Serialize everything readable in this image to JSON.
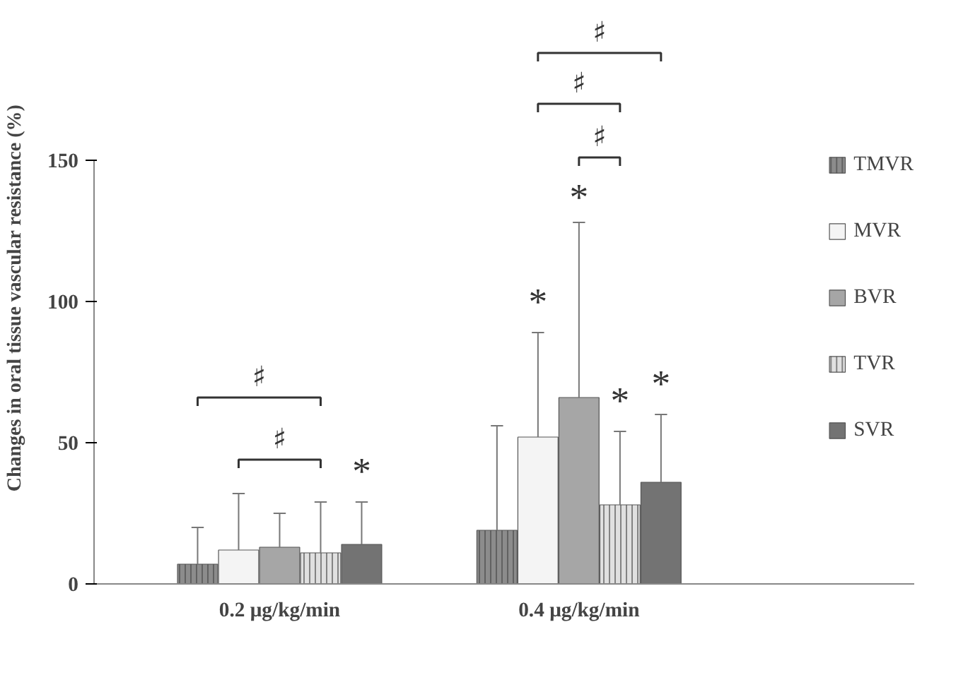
{
  "chart_data": {
    "type": "bar",
    "ylabel": "Changes in oral tissue vascular resistance (%)",
    "categories": [
      "0.2 μg/kg/min",
      "0.4 μg/kg/min"
    ],
    "series": [
      {
        "name": "TMVR",
        "color": "#8c8c8c",
        "values": [
          7,
          19
        ],
        "errors": [
          [
            7,
            20
          ],
          [
            19,
            56
          ]
        ]
      },
      {
        "name": "MVR",
        "color": "#f4f4f4",
        "values": [
          12,
          52
        ],
        "errors": [
          [
            12,
            32
          ],
          [
            52,
            89
          ]
        ]
      },
      {
        "name": "BVR",
        "color": "#a6a6a6",
        "values": [
          13,
          66
        ],
        "errors": [
          [
            13,
            25
          ],
          [
            66,
            128
          ]
        ]
      },
      {
        "name": "TVR",
        "color": "#e0e0e0",
        "values": [
          11,
          28
        ],
        "errors": [
          [
            11,
            29
          ],
          [
            28,
            54
          ]
        ]
      },
      {
        "name": "SVR",
        "color": "#737373",
        "values": [
          14,
          36
        ],
        "errors": [
          [
            14,
            29
          ],
          [
            36,
            60
          ]
        ]
      }
    ],
    "ylim": [
      0,
      150
    ],
    "yticks": [
      0,
      50,
      100,
      150
    ],
    "grid": false,
    "legend": "right",
    "annotations": [
      "*",
      "*",
      "*",
      "*",
      "*",
      "♯",
      "♯",
      "♯",
      "♯",
      "♯"
    ]
  }
}
